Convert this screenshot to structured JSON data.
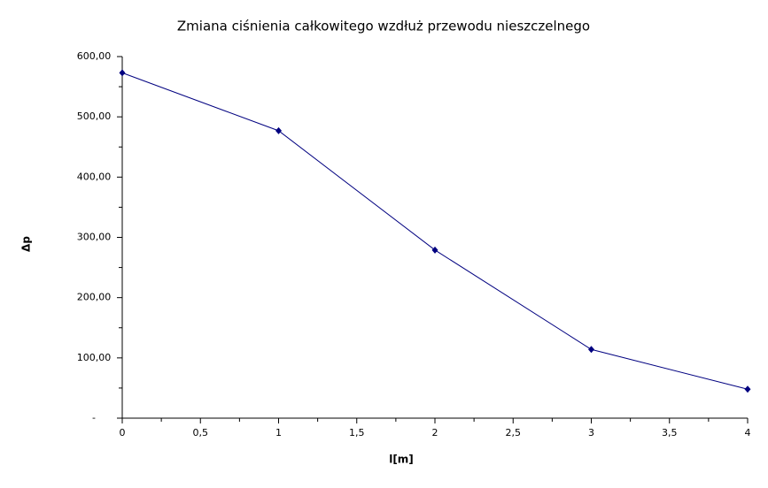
{
  "chart_data": {
    "type": "line",
    "title": "Zmiana ciśnienia całkowitego wzdłuż przewodu nieszczelnego",
    "x_label": "l[m]",
    "y_label": "Δp",
    "x": [
      0,
      1,
      2,
      3,
      4
    ],
    "series": [
      {
        "name": "Δp",
        "color": "#000080",
        "values": [
          573,
          477,
          279,
          114,
          48
        ]
      }
    ],
    "xlim": [
      0,
      4
    ],
    "xticks": [
      0,
      {
        "value": 0.5,
        "label": "0,5"
      },
      1,
      {
        "value": 1.5,
        "label": "1,5"
      },
      2,
      {
        "value": 2.5,
        "label": "2,5"
      },
      3,
      {
        "value": 3.5,
        "label": "3,5"
      },
      4
    ],
    "xminorticks": [
      0.25,
      0.75,
      1.25,
      1.75,
      2.25,
      2.75,
      3.25,
      3.75
    ],
    "ylim": [
      0,
      600
    ],
    "yticks": [
      {
        "value": 0,
        "label": "-"
      },
      {
        "value": 100,
        "label": "100,00"
      },
      {
        "value": 200,
        "label": "200,00"
      },
      {
        "value": 300,
        "label": "300,00"
      },
      {
        "value": 400,
        "label": "400,00"
      },
      {
        "value": 500,
        "label": "500,00"
      },
      {
        "value": 600,
        "label": "600,00"
      }
    ],
    "yminorticks": [
      50,
      150,
      250,
      350,
      450,
      550
    ],
    "grid": false,
    "legend": false
  }
}
